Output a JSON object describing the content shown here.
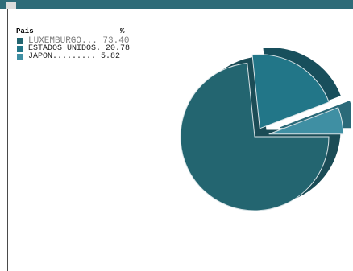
{
  "chart_data": {
    "type": "pie",
    "column_headers": [
      "Pais",
      "%"
    ],
    "categories": [
      "LUXEMBURGO",
      "ESTADOS UNIDOS",
      "JAPON"
    ],
    "values": [
      73.4,
      20.78,
      5.82
    ],
    "legend_lines": [
      "LUXEMBURGO... 73.40",
      "ESTADOS UNIDOS. 20.78",
      "JAPON......... 5.82"
    ],
    "colors": [
      "#236570",
      "#227688",
      "#3f8fa3"
    ],
    "edge_colors": [
      "#1b4c56",
      "#184f5c",
      "#2b6a79"
    ],
    "style": "3d",
    "legend_position": "top-left"
  }
}
